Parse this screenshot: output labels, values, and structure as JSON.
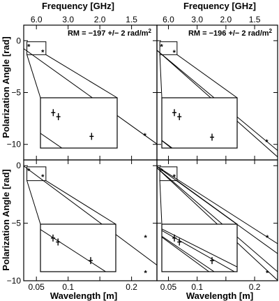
{
  "figure": {
    "top_axis_label": "Frequency [GHz]",
    "bottom_axis_label": "Wavelength [m]",
    "left_axis_label": "Polarization Angle [rad]"
  },
  "chart_data": [
    {
      "type": "scatter",
      "panel": "top-left",
      "annotation": "RM = −197 +/− 2 rad/m",
      "annotation_exponent": "2",
      "xlim": [
        0.03,
        0.24
      ],
      "ylim": [
        -11.5,
        1.5
      ],
      "xticks": [
        0.05,
        0.1,
        0.15,
        0.2
      ],
      "xtick_labels": [
        "0.05",
        "0.1",
        "",
        "0.2"
      ],
      "yticks": [
        0,
        -5,
        -10
      ],
      "ytick_labels": [
        "0",
        "−5",
        "−10"
      ],
      "freq_ticks": [
        6.0,
        3.0,
        2.0,
        1.5
      ],
      "freq_tick_labels": [
        "6.0",
        "3.0",
        "2.0",
        "1.5"
      ],
      "x_points": [
        0.038,
        0.06,
        0.221
      ],
      "y_points": [
        -0.55,
        -1.1,
        -9.15
      ],
      "fit_lines": [
        {
          "intercept": 0.55,
          "slope": -43.8
        }
      ],
      "inset": {
        "xlim": [
          0.035,
          0.065
        ],
        "ylim": [
          -1.35,
          -0.1
        ],
        "x_points": [
          0.04,
          0.042,
          0.055
        ],
        "y_points": [
          -0.47,
          -0.57,
          -1.06
        ]
      }
    },
    {
      "type": "scatter",
      "panel": "top-right",
      "annotation": "RM = −196 +/− 2 rad/m",
      "annotation_exponent": "2",
      "xlim": [
        0.03,
        0.24
      ],
      "ylim": [
        -11.5,
        1.5
      ],
      "xticks": [
        0.05,
        0.1,
        0.15,
        0.2
      ],
      "xtick_labels": [
        "",
        "",
        "",
        ""
      ],
      "yticks": [
        0,
        -5,
        -10
      ],
      "ytick_labels": [
        "",
        "",
        ""
      ],
      "freq_ticks": [
        6.0,
        3.0,
        2.0,
        1.5
      ],
      "freq_tick_labels": [
        "6.0",
        "3.0",
        "2.0",
        "1.5"
      ],
      "x_points": [
        0.038,
        0.06,
        0.221
      ],
      "y_points": [
        -0.55,
        -1.12,
        -9.75
      ],
      "fit_lines": [
        {
          "intercept": 0.45,
          "slope": -46.0
        },
        {
          "intercept": 0.55,
          "slope": -49.0
        }
      ],
      "inset": {
        "xlim": [
          0.035,
          0.065
        ],
        "ylim": [
          -1.35,
          -0.1
        ],
        "x_points": [
          0.04,
          0.042,
          0.055
        ],
        "y_points": [
          -0.47,
          -0.57,
          -1.08
        ]
      }
    },
    {
      "type": "scatter",
      "panel": "bottom-left",
      "annotation": "",
      "annotation_exponent": "",
      "xlim": [
        0.03,
        0.24
      ],
      "ylim": [
        -10.0,
        0.5
      ],
      "xticks": [
        0.05,
        0.1,
        0.15,
        0.2
      ],
      "xtick_labels": [
        "0.05",
        "0.1",
        "",
        "0.2"
      ],
      "yticks": [
        0,
        -5,
        -10
      ],
      "ytick_labels": [
        "0",
        "−5",
        "−10"
      ],
      "freq_ticks": [
        6.0,
        3.0,
        2.0,
        1.5
      ],
      "freq_tick_labels": [],
      "x_points": [
        0.038,
        0.06,
        0.222,
        0.222
      ],
      "y_points": [
        -0.45,
        -0.95,
        -6.25,
        -9.3
      ],
      "fit_lines": [
        {
          "intercept": 1.2,
          "slope": -41.0
        }
      ],
      "inset": {
        "xlim": [
          0.035,
          0.065
        ],
        "ylim": [
          -1.3,
          -0.1
        ],
        "x_points": [
          0.04,
          0.042,
          0.055
        ],
        "y_points": [
          -0.45,
          -0.55,
          -1.02
        ]
      }
    },
    {
      "type": "scatter",
      "panel": "bottom-right",
      "annotation": "",
      "annotation_exponent": "",
      "xlim": [
        0.03,
        0.24
      ],
      "ylim": [
        -10.0,
        0.5
      ],
      "xticks": [
        0.05,
        0.1,
        0.15,
        0.2
      ],
      "xtick_labels": [
        "0.05",
        "0.1",
        "",
        "0.2"
      ],
      "yticks": [
        0,
        -5,
        -10
      ],
      "ytick_labels": [
        "",
        "",
        ""
      ],
      "freq_ticks": [
        6.0,
        3.0,
        2.0,
        1.5
      ],
      "freq_tick_labels": [],
      "x_points": [
        0.038,
        0.06,
        0.222,
        0.222
      ],
      "y_points": [
        -0.45,
        -0.95,
        -6.25,
        -9.3
      ],
      "fit_lines": [
        {
          "intercept": 0.9,
          "slope": -32.0
        },
        {
          "intercept": 1.0,
          "slope": -36.0
        },
        {
          "intercept": 1.1,
          "slope": -43.0
        },
        {
          "intercept": 1.2,
          "slope": -46.5
        }
      ],
      "inset": {
        "xlim": [
          0.035,
          0.065
        ],
        "ylim": [
          -1.3,
          -0.1
        ],
        "x_points": [
          0.04,
          0.042,
          0.055
        ],
        "y_points": [
          -0.45,
          -0.55,
          -1.02
        ]
      }
    }
  ]
}
